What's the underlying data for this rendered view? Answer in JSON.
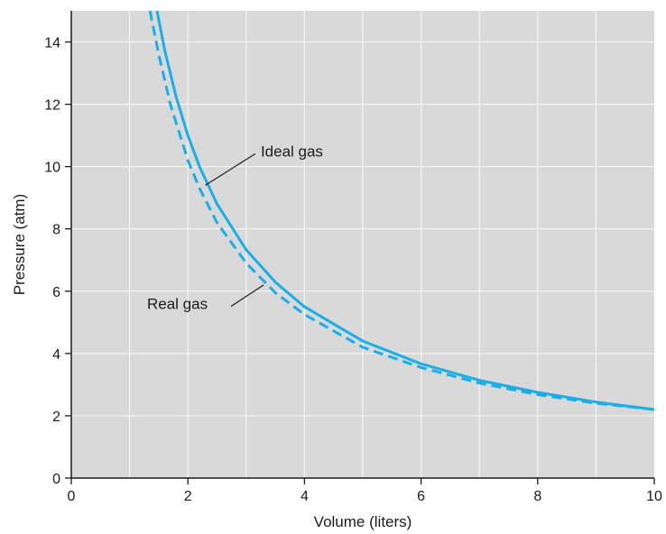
{
  "chart_data": {
    "type": "line",
    "title": "",
    "xlabel": "Volume (liters)",
    "ylabel": "Pressure (atm)",
    "xlim": [
      0,
      10
    ],
    "ylim": [
      0,
      15
    ],
    "xticks": [
      0,
      2,
      4,
      6,
      8,
      10
    ],
    "yticks": [
      0,
      2,
      4,
      6,
      8,
      10,
      12,
      14
    ],
    "grid": true,
    "colors": {
      "background": "#d9d9d9",
      "grid": "#f4f4f4",
      "curve": "#1aaee6",
      "axis": "#1a1a1a"
    },
    "series": [
      {
        "style": "solid",
        "x": [
          1.47,
          1.6,
          1.8,
          2.0,
          2.2,
          2.5,
          3.0,
          3.5,
          4.0,
          5.0,
          6.0,
          7.0,
          8.0,
          9.0,
          10.0
        ],
        "y": [
          15.0,
          13.75,
          12.22,
          11.0,
          10.0,
          8.8,
          7.33,
          6.29,
          5.5,
          4.4,
          3.67,
          3.14,
          2.75,
          2.44,
          2.2
        ]
      },
      {
        "style": "dashed",
        "x": [
          1.35,
          1.5,
          1.7,
          2.0,
          2.2,
          2.5,
          3.0,
          3.5,
          4.0,
          5.0,
          6.0,
          7.0,
          8.0,
          9.0,
          10.0
        ],
        "y": [
          15.0,
          13.6,
          12.0,
          10.2,
          9.3,
          8.2,
          6.9,
          5.95,
          5.25,
          4.2,
          3.55,
          3.05,
          2.68,
          2.4,
          2.2
        ]
      }
    ],
    "annotations": [
      {
        "text": "Ideal gas",
        "x": 3.25,
        "y": 10.5,
        "points_to": [
          2.3,
          9.4
        ]
      },
      {
        "text": "Real gas",
        "x": 1.3,
        "y": 5.6,
        "points_to": [
          3.3,
          6.2
        ]
      }
    ]
  }
}
